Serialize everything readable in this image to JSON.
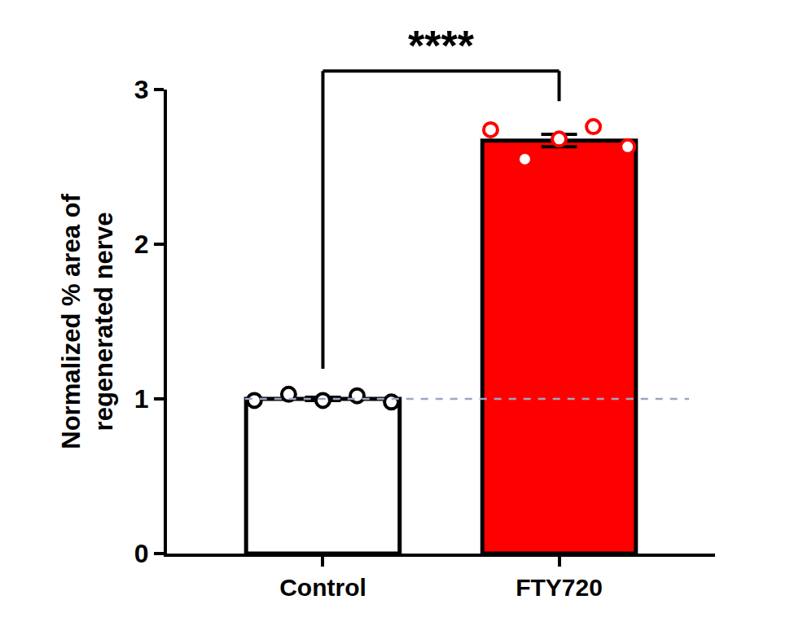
{
  "chart_data": {
    "type": "bar",
    "categories": [
      "Control",
      "FTY720"
    ],
    "values": [
      1.0,
      2.67
    ],
    "errors": [
      0.01,
      0.04
    ],
    "points": [
      [
        0.99,
        1.03,
        0.99,
        1.02,
        0.98
      ],
      [
        2.74,
        2.55,
        2.68,
        2.76,
        2.63
      ]
    ],
    "colors": [
      "#ffffff",
      "#ff0000"
    ],
    "y_label": "Normalized % area of\nregenerated nerve",
    "ylim": [
      0,
      3
    ],
    "yticks": [
      0,
      1,
      2,
      3
    ],
    "reference_line": 1,
    "line_style": "dashed",
    "marker": "circle",
    "annotations": [
      {
        "text": "****",
        "between": [
          0,
          1
        ]
      }
    ],
    "grid": false
  }
}
